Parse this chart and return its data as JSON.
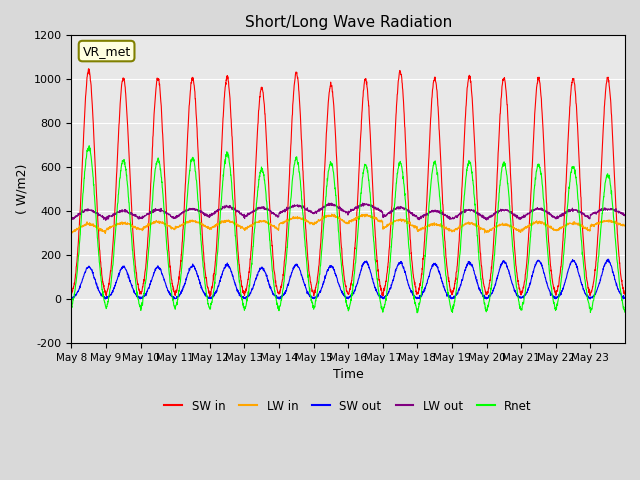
{
  "title": "Short/Long Wave Radiation",
  "ylabel": "( W/m2)",
  "xlabel": "Time",
  "ylim": [
    -200,
    1200
  ],
  "yticks": [
    -200,
    0,
    200,
    400,
    600,
    800,
    1000,
    1200
  ],
  "legend_labels": [
    "SW in",
    "LW in",
    "SW out",
    "LW out",
    "Rnet"
  ],
  "legend_colors": [
    "red",
    "orange",
    "blue",
    "purple",
    "lime"
  ],
  "station_label": "VR_met",
  "x_tick_labels": [
    "May 8",
    "May 9",
    "May 10",
    "May 11",
    "May 12",
    "May 13",
    "May 14",
    "May 15",
    "May 16",
    "May 17",
    "May 18",
    "May 19",
    "May 20",
    "May 21",
    "May 22",
    "May 23"
  ],
  "num_days": 16,
  "sw_in_peak": [
    1040,
    1005,
    1005,
    1005,
    1010,
    960,
    1030,
    975,
    1000,
    1035,
    1005,
    1010,
    1005,
    1005,
    1005,
    1005
  ],
  "lw_in_base": [
    290,
    305,
    305,
    310,
    310,
    305,
    330,
    330,
    340,
    310,
    300,
    295,
    295,
    300,
    300,
    325
  ],
  "lw_in_day_add": [
    50,
    40,
    45,
    45,
    45,
    50,
    40,
    50,
    40,
    50,
    40,
    50,
    45,
    50,
    45,
    30
  ],
  "sw_out_peak": [
    145,
    145,
    145,
    150,
    155,
    140,
    155,
    150,
    170,
    165,
    160,
    165,
    170,
    175,
    175,
    175
  ],
  "lw_out_base": [
    350,
    355,
    355,
    360,
    365,
    360,
    380,
    375,
    385,
    360,
    350,
    350,
    350,
    355,
    355,
    375
  ],
  "lw_out_day_add": [
    55,
    45,
    50,
    50,
    55,
    55,
    45,
    55,
    45,
    55,
    50,
    55,
    55,
    55,
    50,
    35
  ],
  "rnet_peak": [
    690,
    630,
    635,
    640,
    660,
    590,
    640,
    620,
    610,
    620,
    620,
    625,
    620,
    610,
    605,
    565
  ],
  "rnet_night": [
    -80,
    -85,
    -85,
    -85,
    -90,
    -90,
    -85,
    -85,
    -95,
    -100,
    -100,
    -100,
    -95,
    -90,
    -85,
    -100
  ]
}
